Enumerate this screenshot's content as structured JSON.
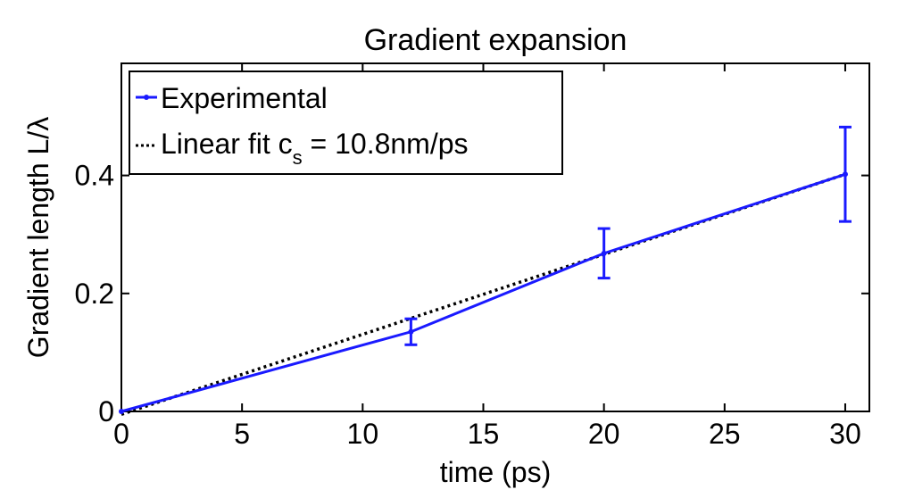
{
  "chart_data": {
    "type": "line",
    "title": "Gradient expansion",
    "xlabel": "time (ps)",
    "ylabel": "Gradient length L/λ",
    "xlim": [
      0,
      31
    ],
    "ylim": [
      0,
      0.59
    ],
    "xticks": [
      0,
      5,
      10,
      15,
      20,
      25,
      30
    ],
    "xtick_labels": [
      "0",
      "5",
      "10",
      "15",
      "20",
      "25",
      "30"
    ],
    "yticks": [
      0,
      0.2,
      0.4
    ],
    "ytick_labels": [
      "0",
      "0.2",
      "0.4"
    ],
    "grid": false,
    "legend_position": "top-left",
    "series": [
      {
        "name": "Experimental",
        "color": "#1a1aff",
        "style": "solid",
        "x": [
          0,
          12,
          20,
          30
        ],
        "y": [
          0.0,
          0.135,
          0.268,
          0.402
        ],
        "err": [
          0.0,
          0.022,
          0.042,
          0.08
        ]
      },
      {
        "name": "Linear fit c",
        "name_subscript": "s",
        "name_suffix": " = 10.8nm/ps",
        "color": "#000000",
        "style": "dotted",
        "x": [
          0,
          30
        ],
        "y": [
          -0.005,
          0.402
        ]
      }
    ]
  }
}
